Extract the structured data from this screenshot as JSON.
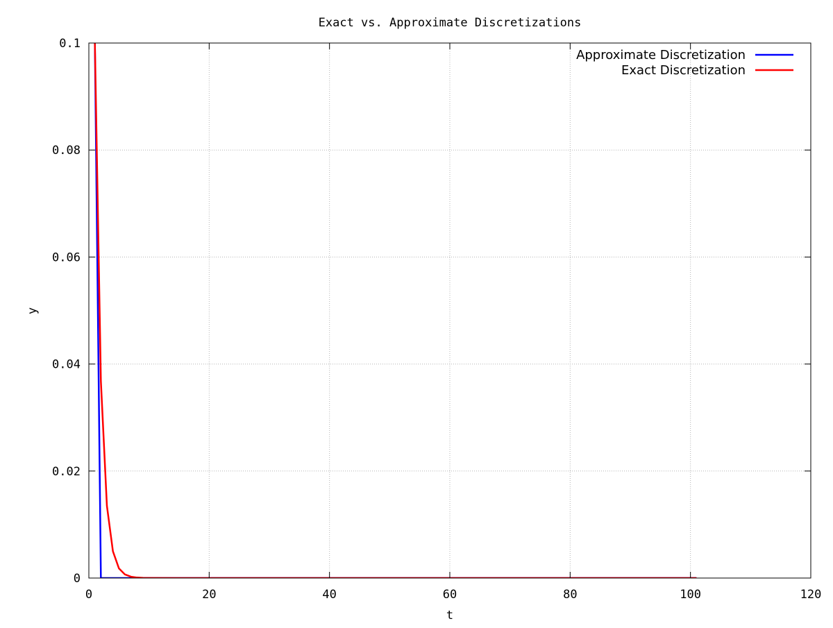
{
  "chart_data": {
    "type": "line",
    "title": "Exact vs. Approximate Discretizations",
    "xlabel": "t",
    "ylabel": "y",
    "xlim": [
      0,
      120
    ],
    "ylim": [
      0,
      0.1
    ],
    "x_ticks": [
      "0",
      "20",
      "40",
      "60",
      "80",
      "100",
      "120"
    ],
    "y_ticks": [
      "0",
      "0.02",
      "0.04",
      "0.06",
      "0.08",
      "0.1"
    ],
    "x_tick_values": [
      0,
      20,
      40,
      60,
      80,
      100,
      120
    ],
    "y_tick_values": [
      0,
      0.02,
      0.04,
      0.06,
      0.08,
      0.1
    ],
    "grid": true,
    "legend_position": "top-right",
    "series": [
      {
        "name": "Approximate Discretization",
        "color": "#0000ff",
        "x": [
          1,
          2,
          3,
          10,
          20,
          40,
          60,
          80,
          101
        ],
        "y": [
          0.1,
          0,
          0,
          0,
          0,
          0,
          0,
          0,
          0
        ]
      },
      {
        "name": "Exact Discretization",
        "color": "#ff0000",
        "x": [
          1,
          2,
          3,
          4,
          5,
          6,
          7,
          8,
          9,
          10,
          20,
          40,
          60,
          80,
          101
        ],
        "y": [
          0.1,
          0.0368,
          0.0135,
          0.005,
          0.0018,
          0.00067,
          0.00025,
          9e-05,
          3e-05,
          1e-05,
          0,
          0,
          0,
          0,
          0
        ]
      }
    ]
  }
}
